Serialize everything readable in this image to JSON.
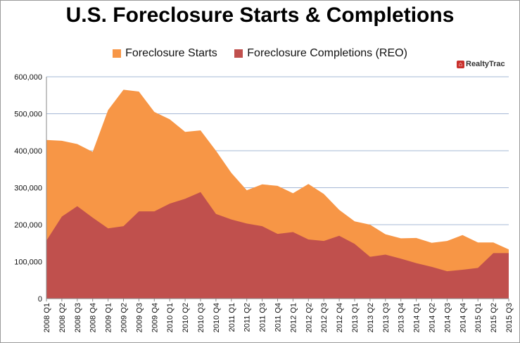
{
  "chart_data": {
    "type": "area",
    "title": "U.S. Foreclosure Starts & Completions",
    "categories": [
      "2008 Q1",
      "2008 Q2",
      "2008 Q3",
      "2008 Q4",
      "2009 Q1",
      "2009 Q2",
      "2009 Q3",
      "2009 Q4",
      "2010 Q1",
      "2010 Q2",
      "2010 Q3",
      "2010 Q4",
      "2011 Q1",
      "2011 Q2",
      "2011 Q3",
      "2011 Q4",
      "2012 Q1",
      "2012 Q2",
      "2012 Q3",
      "2012 Q4",
      "2013 Q1",
      "2013 Q2",
      "2013 Q3",
      "2013 Q4",
      "2014 Q1",
      "2014 Q2",
      "2014 Q3",
      "2014 Q4",
      "2015 Q1",
      "2015 Q2",
      "2015 Q3"
    ],
    "series": [
      {
        "name": "Foreclosure Starts",
        "color": "#f79646",
        "values": [
          429000,
          427000,
          418000,
          397000,
          510000,
          565000,
          560000,
          505000,
          485000,
          451000,
          455000,
          400000,
          340000,
          293000,
          309000,
          305000,
          285000,
          310000,
          283000,
          240000,
          209000,
          200000,
          174000,
          163000,
          164000,
          151000,
          156000,
          172000,
          152000,
          152000,
          133000
        ]
      },
      {
        "name": "Foreclosure Completions (REO)",
        "color": "#c0504d",
        "values": [
          157000,
          222000,
          250000,
          219000,
          190000,
          196000,
          236000,
          236000,
          257000,
          270000,
          288000,
          229000,
          214000,
          203000,
          196000,
          175000,
          180000,
          160000,
          156000,
          170000,
          148000,
          113000,
          119000,
          108000,
          96000,
          86000,
          74000,
          78000,
          83000,
          123000,
          123000
        ]
      }
    ],
    "ylim": [
      0,
      600000
    ],
    "yticks": [
      "0",
      "100,000",
      "200,000",
      "300,000",
      "400,000",
      "500,000",
      "600,000"
    ],
    "grid": true,
    "legend_position": "top"
  },
  "logo": {
    "text": "RealtyTrac"
  }
}
